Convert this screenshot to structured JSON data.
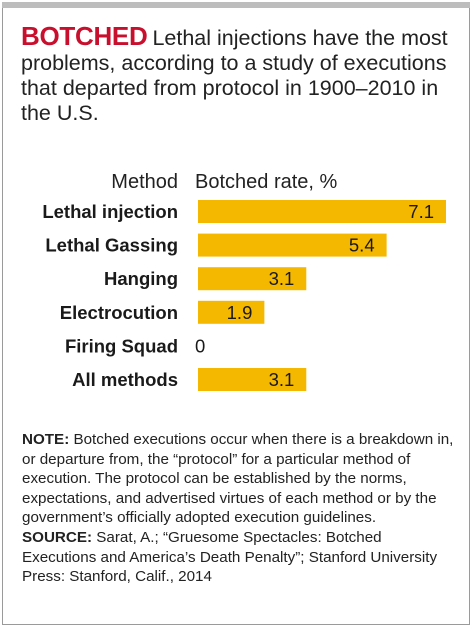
{
  "headline": {
    "kicker": "BOTCHED",
    "text": "Lethal injections have the most problems, according to a study of executions that departed from protocol in 1900–2010 in the U.S."
  },
  "chart_data": {
    "type": "bar",
    "orientation": "horizontal",
    "category_header": "Method",
    "value_header": "Botched rate, %",
    "categories": [
      "Lethal injection",
      "Lethal Gassing",
      "Hanging",
      "Electrocution",
      "Firing Squad",
      "All methods"
    ],
    "values": [
      7.1,
      5.4,
      3.1,
      1.9,
      0,
      3.1
    ],
    "value_labels": [
      "7.1",
      "5.4",
      "3.1",
      "1.9",
      "0",
      "3.1"
    ],
    "xlim": [
      0,
      7.1
    ],
    "grid": false,
    "legend": "none",
    "bar_color": "#f5b800"
  },
  "note": {
    "note_label": "NOTE:",
    "note_text": "Botched executions occur when there is a breakdown in, or departure from, the “protocol” for a particular method of execution. The protocol can be established by the norms, expectations, and advertised virtues of each method or by the government’s officially adopted execution guidelines.",
    "source_label": "SOURCE:",
    "source_text": "Sarat, A.; “Gruesome Spectacles: Botched Executions and America’s Death Penalty”; Stanford University Press: Stanford, Calif., 2014"
  }
}
